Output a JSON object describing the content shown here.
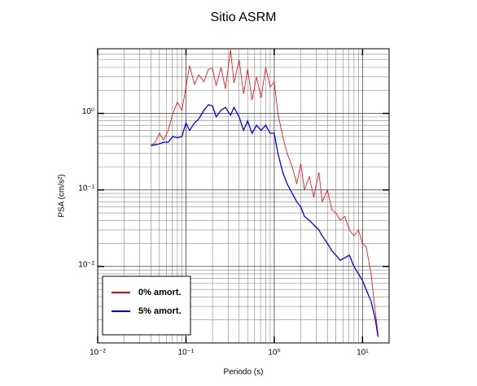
{
  "chart_data": {
    "type": "line",
    "title": "Sitio ASRM",
    "xlabel": "Periodo (s)",
    "ylabel": "PSA (cm/s²)",
    "xscale": "log",
    "yscale": "log",
    "grid": true,
    "legend": "lower left",
    "xlim": [
      0.01,
      20
    ],
    "ylim": [
      0.001,
      7
    ],
    "xticks": [
      {
        "value": 0.01,
        "label": "10⁻²"
      },
      {
        "value": 0.1,
        "label": "10⁻¹"
      },
      {
        "value": 1,
        "label": "10⁰"
      },
      {
        "value": 10,
        "label": "10¹"
      }
    ],
    "yticks": [
      {
        "value": 0.01,
        "label": "10⁻²"
      },
      {
        "value": 0.1,
        "label": "10⁻¹"
      },
      {
        "value": 1,
        "label": "10⁰"
      }
    ],
    "x": [
      0.04,
      0.045,
      0.05,
      0.056,
      0.063,
      0.071,
      0.08,
      0.09,
      0.1,
      0.11,
      0.125,
      0.14,
      0.16,
      0.18,
      0.2,
      0.22,
      0.25,
      0.28,
      0.32,
      0.35,
      0.4,
      0.45,
      0.5,
      0.56,
      0.63,
      0.71,
      0.8,
      0.9,
      1.0,
      1.1,
      1.25,
      1.4,
      1.6,
      1.8,
      2.0,
      2.2,
      2.5,
      2.8,
      3.2,
      3.5,
      4.0,
      4.5,
      5.0,
      5.6,
      6.3,
      7.1,
      8.0,
      9.0,
      10,
      11,
      12.5,
      14,
      15
    ],
    "series": [
      {
        "name": "0% amort.",
        "color": "#ff0000",
        "values": [
          0.38,
          0.42,
          0.55,
          0.45,
          0.6,
          1.0,
          1.4,
          1.1,
          2.2,
          4.2,
          2.4,
          3.2,
          2.6,
          3.8,
          3.9,
          2.3,
          4.0,
          2.1,
          6.8,
          2.5,
          5.0,
          1.8,
          3.8,
          1.5,
          3.0,
          1.6,
          4.0,
          2.2,
          2.6,
          1.0,
          0.5,
          0.3,
          0.2,
          0.12,
          0.22,
          0.1,
          0.15,
          0.08,
          0.17,
          0.07,
          0.1,
          0.055,
          0.05,
          0.04,
          0.045,
          0.03,
          0.025,
          0.03,
          0.02,
          0.018,
          0.008,
          0.0025,
          0.0013
        ]
      },
      {
        "name": "5% amort.",
        "color": "#0000ff",
        "values": [
          0.38,
          0.39,
          0.4,
          0.42,
          0.42,
          0.5,
          0.48,
          0.5,
          0.75,
          0.6,
          0.75,
          0.85,
          1.1,
          1.3,
          1.25,
          0.9,
          1.1,
          1.2,
          0.95,
          1.2,
          0.9,
          0.6,
          0.8,
          0.55,
          0.7,
          0.6,
          0.7,
          0.55,
          0.55,
          0.3,
          0.17,
          0.12,
          0.09,
          0.07,
          0.06,
          0.045,
          0.04,
          0.035,
          0.03,
          0.025,
          0.02,
          0.016,
          0.014,
          0.012,
          0.013,
          0.014,
          0.01,
          0.008,
          0.0065,
          0.005,
          0.0035,
          0.002,
          0.0012
        ]
      }
    ]
  }
}
